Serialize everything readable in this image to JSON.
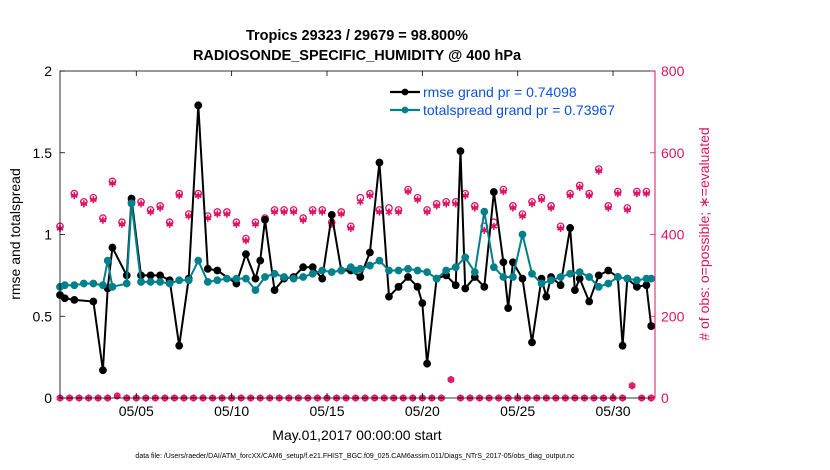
{
  "chart_data": {
    "type": "line",
    "title": "Tropics 29323 / 29679 = 98.800%",
    "subtitle": "RADIOSONDE_SPECIFIC_HUMIDITY @ 400 hPa",
    "xlabel": "May.01,2017 00:00:00 start",
    "ylabel": "rmse and totalspread",
    "y2label": "# of obs: o=possible; ∗=evaluated",
    "footer": "data file: /Users/raeder/DAI/ATM_forcXX/CAM6_setup/f.e21.FHIST_BGC.f09_025.CAM6assim.011/Diags_NTrS_2017-05/obs_diag_output.nc",
    "x_range": [
      1.0,
      32.2
    ],
    "ylim": [
      0,
      2
    ],
    "y2lim": [
      0,
      800
    ],
    "x_ticks": [
      5,
      10,
      15,
      20,
      25,
      30
    ],
    "x_tick_labels": [
      "05/05",
      "05/10",
      "05/15",
      "05/20",
      "05/25",
      "05/30"
    ],
    "y_ticks": [
      0,
      0.5,
      1,
      1.5,
      2
    ],
    "y_tick_labels": [
      "0",
      "0.5",
      "1",
      "1.5",
      "2"
    ],
    "y2_ticks": [
      0,
      200,
      400,
      600,
      800
    ],
    "y2_tick_labels": [
      "0",
      "200",
      "400",
      "600",
      "800"
    ],
    "colors": {
      "rmse": "#000000",
      "spread": "#00808a",
      "obs": "#dc1463",
      "legend_text": "#0b50e0"
    },
    "series": [
      {
        "name": "rmse grand pr = 0.74098",
        "color": "#000000",
        "x": [
          1.0,
          1.25,
          1.75,
          2.75,
          3.25,
          3.5,
          3.75,
          4.5,
          4.75,
          5.25,
          5.75,
          6.25,
          6.75,
          7.25,
          7.75,
          8.25,
          8.75,
          9.25,
          10.25,
          10.75,
          11.25,
          11.5,
          11.75,
          12.25,
          12.75,
          13.25,
          13.75,
          14.25,
          14.75,
          15.25,
          15.75,
          16.25,
          16.75,
          17.25,
          17.75,
          18.25,
          18.75,
          19.25,
          19.75,
          20.0,
          20.25,
          20.75,
          21.25,
          21.75,
          22.0,
          22.25,
          22.75,
          23.25,
          23.75,
          24.25,
          24.5,
          24.75,
          25.25,
          25.75,
          26.25,
          26.5,
          26.75,
          27.25,
          27.75,
          28.0,
          28.25,
          28.75,
          29.25,
          29.75,
          30.25,
          30.5,
          30.75,
          31.25,
          31.75,
          32.0
        ],
        "values": [
          0.63,
          0.61,
          0.6,
          0.59,
          0.17,
          0.67,
          0.92,
          0.75,
          1.22,
          0.75,
          0.75,
          0.75,
          0.72,
          0.32,
          0.73,
          1.79,
          0.79,
          0.78,
          0.7,
          0.88,
          0.73,
          0.84,
          1.09,
          0.66,
          0.73,
          0.74,
          0.8,
          0.8,
          0.73,
          1.12,
          0.78,
          0.78,
          0.74,
          0.89,
          1.44,
          0.62,
          0.68,
          0.74,
          0.68,
          0.58,
          0.21,
          0.73,
          0.75,
          0.69,
          1.51,
          0.67,
          0.74,
          0.68,
          1.26,
          0.83,
          0.55,
          0.83,
          0.73,
          0.34,
          0.73,
          0.62,
          0.74,
          0.69,
          1.04,
          0.66,
          0.73,
          0.59,
          0.75,
          0.78,
          0.74,
          0.32,
          0.73,
          0.68,
          0.69,
          0.44
        ]
      },
      {
        "name": "totalspread grand pr = 0.73967",
        "color": "#00808a",
        "x": [
          1.0,
          1.25,
          1.75,
          2.25,
          2.75,
          3.25,
          3.5,
          3.75,
          4.5,
          4.75,
          5.25,
          5.75,
          6.25,
          6.75,
          7.25,
          7.75,
          8.25,
          8.75,
          9.25,
          9.75,
          10.25,
          10.75,
          11.25,
          11.75,
          12.25,
          12.75,
          13.25,
          13.75,
          14.25,
          14.75,
          15.25,
          15.75,
          16.25,
          16.5,
          16.75,
          17.25,
          17.75,
          18.25,
          18.75,
          19.25,
          19.75,
          20.25,
          20.75,
          21.25,
          21.75,
          22.25,
          22.75,
          23.25,
          23.75,
          24.25,
          24.75,
          25.25,
          25.75,
          26.25,
          26.75,
          27.25,
          27.75,
          28.25,
          28.75,
          29.25,
          29.75,
          30.25,
          30.75,
          31.25,
          31.75,
          32.0
        ],
        "values": [
          0.68,
          0.69,
          0.69,
          0.7,
          0.7,
          0.69,
          0.84,
          0.68,
          0.7,
          1.19,
          0.71,
          0.71,
          0.71,
          0.7,
          0.72,
          0.72,
          0.84,
          0.71,
          0.72,
          0.73,
          0.73,
          0.73,
          0.66,
          0.74,
          0.76,
          0.74,
          0.73,
          0.74,
          0.76,
          0.78,
          0.77,
          0.78,
          0.8,
          0.78,
          0.79,
          0.81,
          0.84,
          0.78,
          0.78,
          0.79,
          0.78,
          0.77,
          0.73,
          0.78,
          0.8,
          0.86,
          0.77,
          1.14,
          0.8,
          0.74,
          0.74,
          1.0,
          0.76,
          0.7,
          0.72,
          0.74,
          0.76,
          0.77,
          0.74,
          0.68,
          0.7,
          0.74,
          0.73,
          0.72,
          0.73,
          0.73
        ]
      }
    ],
    "obs_possible": {
      "x": [
        1.0,
        1.75,
        2.25,
        2.75,
        3.25,
        3.75,
        4.25,
        4.75,
        5.25,
        5.75,
        6.25,
        6.75,
        7.25,
        7.75,
        8.25,
        8.75,
        9.25,
        9.75,
        10.25,
        10.75,
        11.25,
        11.75,
        12.25,
        12.75,
        13.25,
        13.75,
        14.25,
        14.75,
        15.25,
        15.75,
        16.25,
        16.75,
        17.25,
        17.75,
        18.25,
        18.75,
        19.25,
        19.75,
        20.25,
        20.75,
        21.25,
        21.75,
        22.25,
        22.75,
        23.25,
        23.75,
        24.25,
        24.75,
        25.25,
        25.75,
        26.25,
        26.75,
        27.25,
        27.75,
        28.25,
        28.75,
        29.25,
        29.75,
        30.25,
        30.75,
        31.25,
        31.75
      ],
      "values": [
        420,
        500,
        480,
        490,
        440,
        530,
        430,
        480,
        480,
        460,
        470,
        430,
        500,
        450,
        500,
        445,
        455,
        455,
        430,
        390,
        430,
        440,
        460,
        460,
        460,
        440,
        460,
        460,
        430,
        455,
        420,
        490,
        500,
        460,
        465,
        460,
        510,
        490,
        460,
        475,
        480,
        480,
        500,
        470,
        420,
        430,
        510,
        470,
        450,
        480,
        490,
        470,
        420,
        500,
        520,
        500,
        560,
        470,
        505,
        465,
        505,
        505
      ]
    },
    "obs_evaluated": {
      "x": [
        1.0,
        1.75,
        2.25,
        2.75,
        3.25,
        3.75,
        4.25,
        4.75,
        5.25,
        5.75,
        6.25,
        6.75,
        7.25,
        7.75,
        8.25,
        8.75,
        9.25,
        9.75,
        10.25,
        10.75,
        11.25,
        11.75,
        12.25,
        12.75,
        13.25,
        13.75,
        14.25,
        14.75,
        15.25,
        15.75,
        16.25,
        16.75,
        17.25,
        17.75,
        18.25,
        18.75,
        19.25,
        19.75,
        20.25,
        20.75,
        21.25,
        21.75,
        22.25,
        22.75,
        23.25,
        23.75,
        24.25,
        24.75,
        25.25,
        25.75,
        26.25,
        26.75,
        27.25,
        27.75,
        28.25,
        28.75,
        29.25,
        29.75,
        30.25,
        30.75,
        31.25,
        31.75
      ],
      "values": [
        415,
        495,
        475,
        485,
        435,
        525,
        425,
        475,
        475,
        455,
        465,
        425,
        495,
        445,
        495,
        440,
        450,
        450,
        425,
        385,
        425,
        435,
        455,
        455,
        455,
        435,
        455,
        455,
        425,
        450,
        415,
        480,
        495,
        455,
        455,
        455,
        505,
        485,
        455,
        470,
        475,
        475,
        495,
        465,
        410,
        420,
        505,
        465,
        445,
        475,
        485,
        465,
        415,
        495,
        515,
        495,
        555,
        465,
        500,
        460,
        500,
        500
      ]
    },
    "obs_zero_possible": {
      "x": [
        1.0,
        1.5,
        2.0,
        2.5,
        3.0,
        3.5,
        4.0,
        4.5,
        5.0,
        5.5,
        6.0,
        6.5,
        7.0,
        7.5,
        8.0,
        8.5,
        9.0,
        9.5,
        10.0,
        10.5,
        11.0,
        11.5,
        12.0,
        12.5,
        13.0,
        13.5,
        14.0,
        14.5,
        15.0,
        15.5,
        16.0,
        16.5,
        17.0,
        17.5,
        18.0,
        18.5,
        19.0,
        19.5,
        20.0,
        20.5,
        21.0,
        21.5,
        22.0,
        22.5,
        23.0,
        23.5,
        24.0,
        24.5,
        25.0,
        25.5,
        26.0,
        26.5,
        27.0,
        27.5,
        28.0,
        28.5,
        29.0,
        29.5,
        30.0,
        30.5,
        31.0,
        31.5,
        32.0
      ],
      "values": [
        0,
        0,
        0,
        0,
        0,
        0,
        5,
        0,
        0,
        0,
        0,
        0,
        0,
        0,
        0,
        0,
        0,
        0,
        0,
        0,
        0,
        0,
        0,
        0,
        0,
        0,
        0,
        0,
        0,
        0,
        0,
        0,
        0,
        0,
        0,
        0,
        0,
        0,
        0,
        0,
        0,
        45,
        0,
        0,
        0,
        0,
        0,
        0,
        0,
        0,
        0,
        0,
        0,
        0,
        0,
        0,
        0,
        0,
        0,
        0,
        30,
        0,
        0
      ]
    },
    "legend": [
      {
        "label": "rmse grand pr = 0.74098",
        "color": "#000000"
      },
      {
        "label": "totalspread grand pr = 0.73967",
        "color": "#00808a"
      }
    ]
  }
}
